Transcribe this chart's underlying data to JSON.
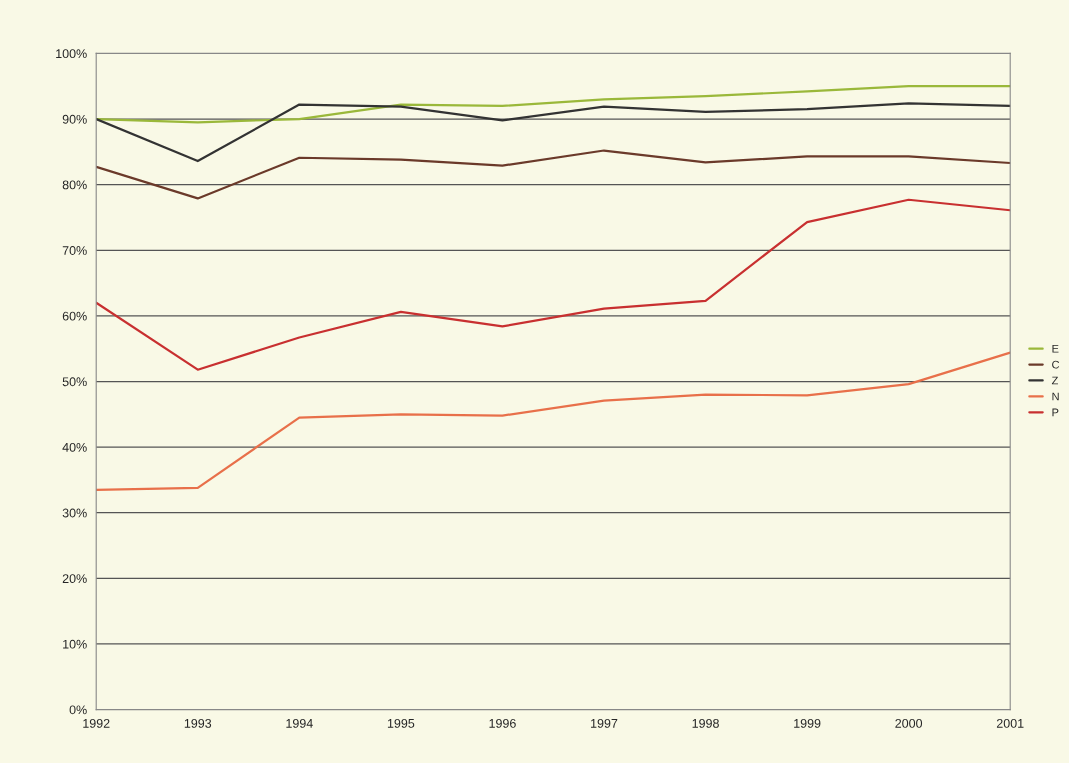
{
  "chart_data": {
    "type": "line",
    "x": [
      1992,
      1993,
      1994,
      1995,
      1996,
      1997,
      1998,
      1999,
      2000,
      2001
    ],
    "xlim": [
      1992,
      2001
    ],
    "xticks": [
      1992,
      1993,
      1994,
      1995,
      1996,
      1997,
      1998,
      1999,
      2000,
      2001
    ],
    "ylim": [
      0,
      100
    ],
    "yticks": [
      {
        "value": 0,
        "label": "0%"
      },
      {
        "value": 10,
        "label": "10%"
      },
      {
        "value": 20,
        "label": "20%"
      },
      {
        "value": 30,
        "label": "30%"
      },
      {
        "value": 40,
        "label": "40%"
      },
      {
        "value": 50,
        "label": "50%"
      },
      {
        "value": 60,
        "label": "60%"
      },
      {
        "value": 70,
        "label": "70%"
      },
      {
        "value": 80,
        "label": "80%"
      },
      {
        "value": 90,
        "label": "90%"
      },
      {
        "value": 100,
        "label": "100%"
      }
    ],
    "grid": "y",
    "legend": "right",
    "marker": "none",
    "line_style": "solid",
    "series": [
      {
        "name": "E",
        "color": "#9ab83a",
        "values": [
          90,
          89.5,
          90,
          92.2,
          92,
          93,
          93.5,
          94.2,
          95,
          95
        ]
      },
      {
        "name": "C",
        "color": "#6b3a2a",
        "values": [
          82.7,
          77.9,
          84.1,
          83.8,
          82.9,
          85.2,
          83.4,
          84.3,
          84.3,
          83.3
        ]
      },
      {
        "name": "Z",
        "color": "#333333",
        "values": [
          90,
          83.6,
          92.2,
          91.9,
          89.8,
          91.9,
          91.1,
          91.5,
          92.4,
          92
        ]
      },
      {
        "name": "N",
        "color": "#e8704a",
        "values": [
          33.5,
          33.8,
          44.5,
          45,
          44.8,
          47.1,
          48,
          47.9,
          49.6,
          54.4
        ]
      },
      {
        "name": "P",
        "color": "#c83030",
        "values": [
          62,
          51.8,
          56.7,
          60.6,
          58.4,
          61.1,
          62.3,
          74.3,
          77.7,
          76.1
        ]
      }
    ]
  }
}
